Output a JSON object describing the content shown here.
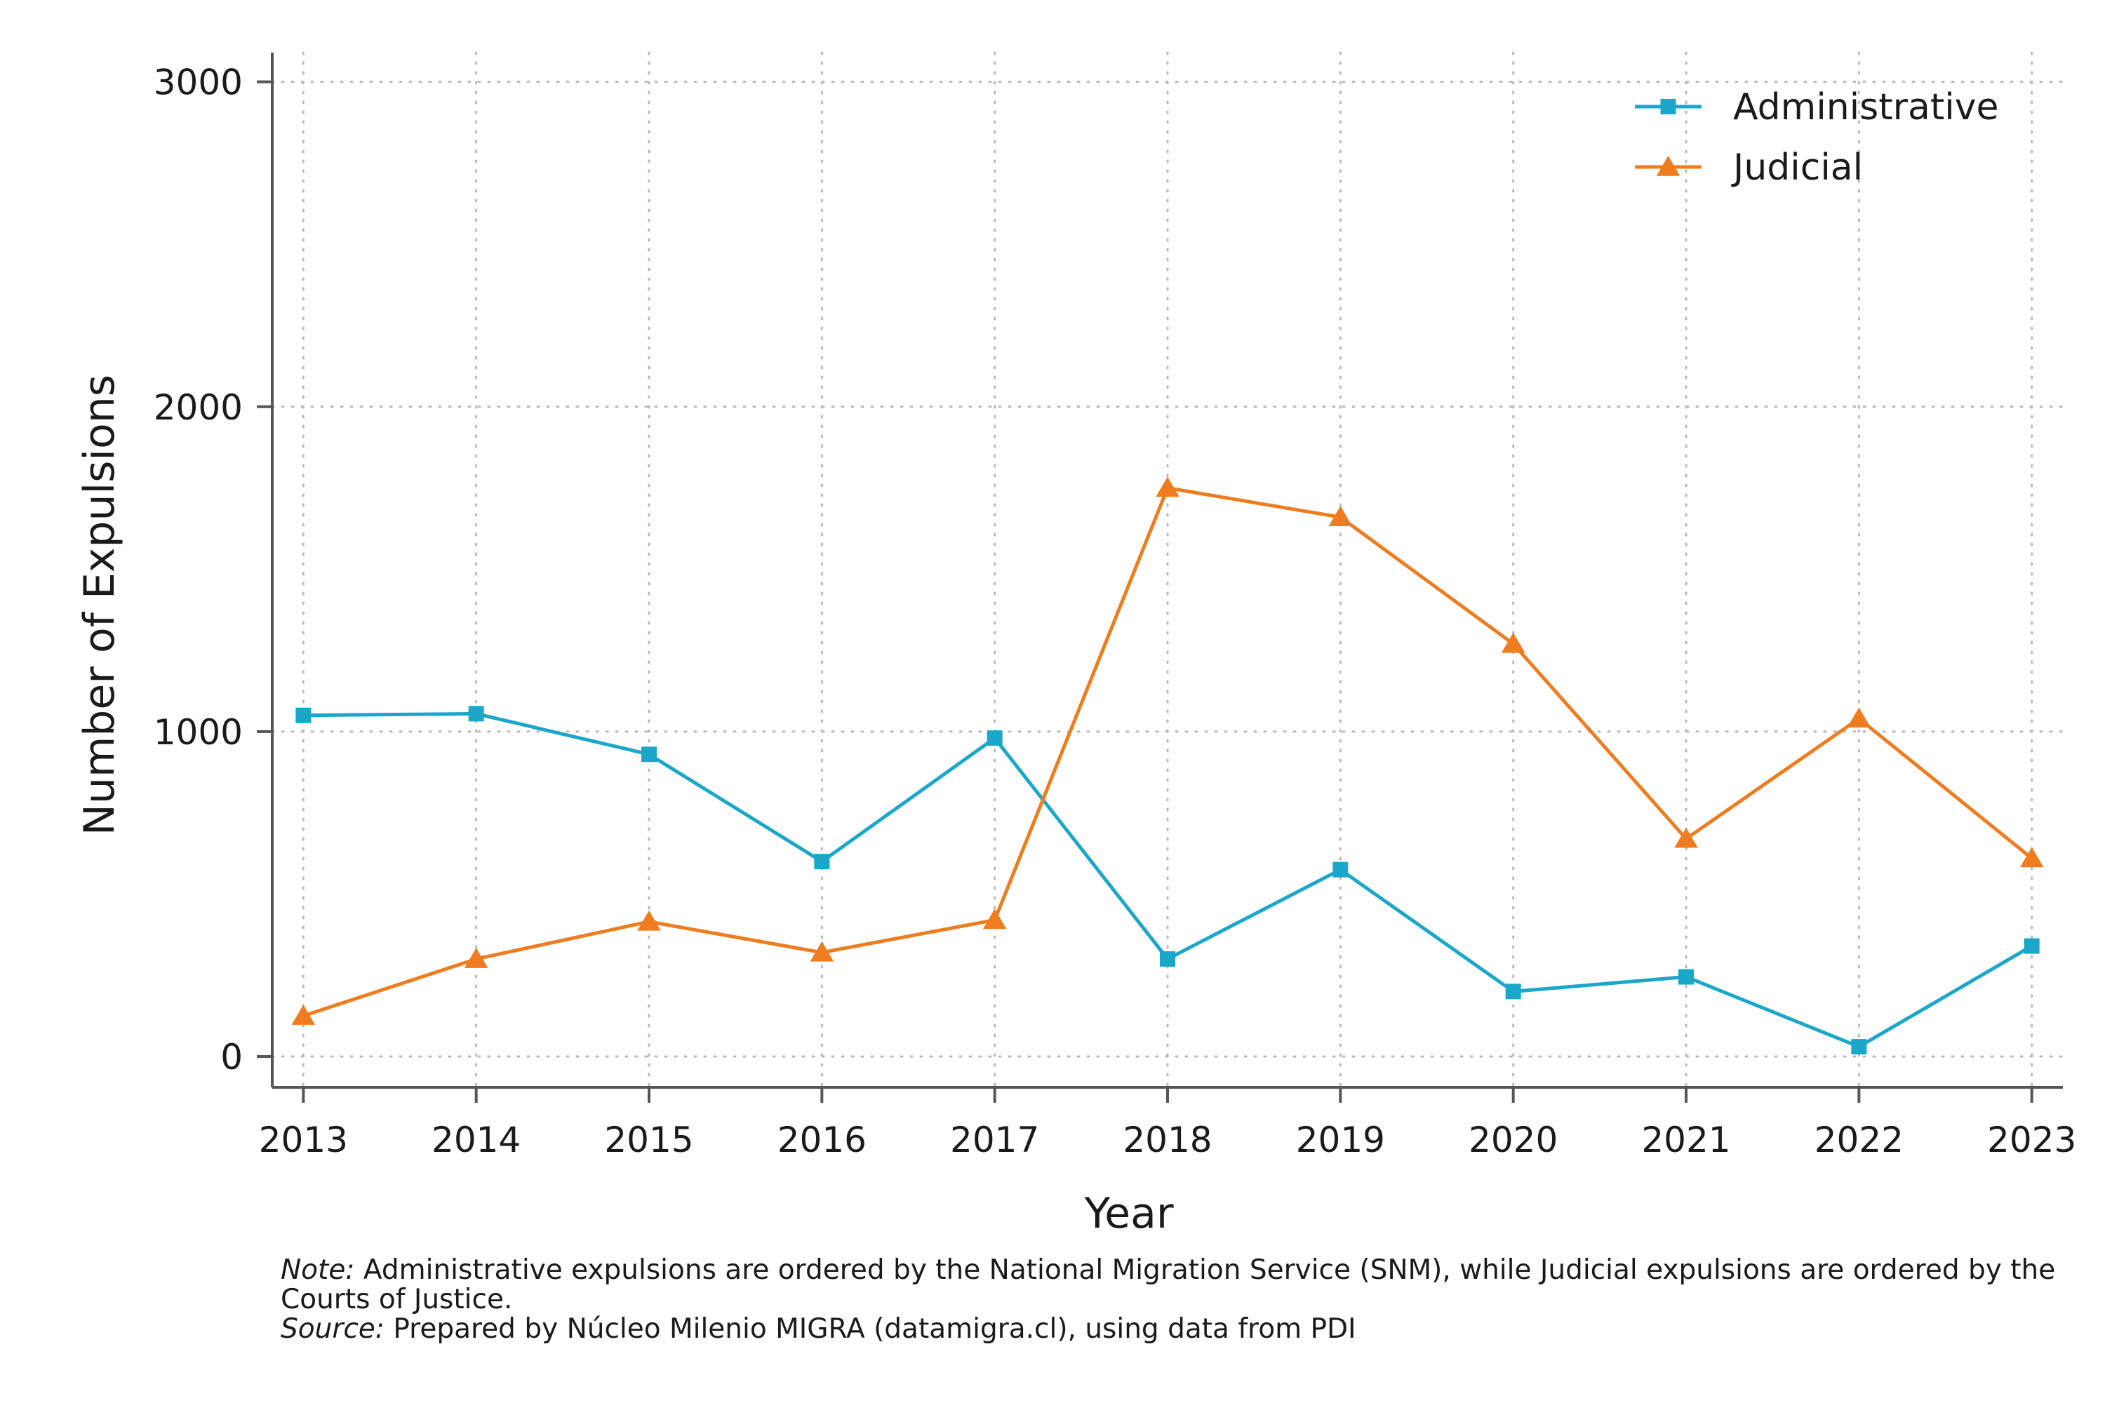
{
  "chart_data": {
    "type": "line",
    "title": "",
    "xlabel": "Year",
    "ylabel": "Number of Expulsions",
    "x": [
      2013,
      2014,
      2015,
      2016,
      2017,
      2018,
      2019,
      2020,
      2021,
      2022,
      2023
    ],
    "xlim": [
      2012.82,
      2023.18
    ],
    "ylim": [
      -95,
      3090
    ],
    "yticks": [
      0,
      1000,
      2000,
      3000
    ],
    "grid": true,
    "legend": "top-right",
    "series": [
      {
        "name": "Administrative",
        "color": "#1aa7c9",
        "marker": "square",
        "values": [
          1050,
          1055,
          930,
          600,
          980,
          300,
          575,
          200,
          245,
          30,
          340
        ]
      },
      {
        "name": "Judicial",
        "color": "#ef7d1f",
        "marker": "triangle",
        "values": [
          125,
          300,
          415,
          320,
          420,
          1750,
          1660,
          1270,
          670,
          1040,
          610
        ]
      }
    ]
  },
  "footnote": {
    "note_label": "Note:",
    "note_text": " Administrative expulsions are ordered by the National Migration Service (SNM), while Judicial expulsions are ordered by the Courts of Justice.",
    "source_label": "Source:",
    "source_text": " Prepared by Núcleo Milenio MIGRA (datamigra.cl), using data from PDI"
  }
}
